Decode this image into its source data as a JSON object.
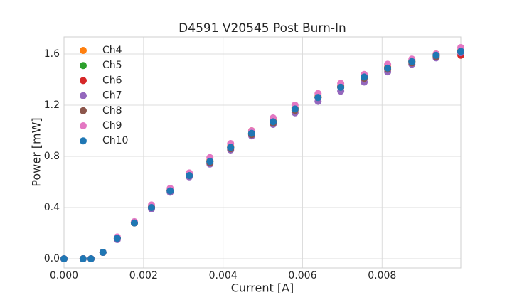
{
  "chart_data": {
    "type": "scatter",
    "title": "D4591 V20545 Post Burn-In",
    "x_label": "Current [A]",
    "y_label": "Power [mW]",
    "x": [
      0,
      0.00048,
      0.00068,
      0.00098,
      0.00134,
      0.00177,
      0.0022,
      0.00267,
      0.00315,
      0.00367,
      0.00419,
      0.00472,
      0.00526,
      0.00581,
      0.00639,
      0.00696,
      0.00755,
      0.00814,
      0.00875,
      0.00936,
      0.00998
    ],
    "series": [
      {
        "name": "Ch4",
        "color": "#ff7f0e",
        "values": [
          0,
          0,
          0,
          0.05,
          0.16,
          0.28,
          0.41,
          0.54,
          0.66,
          0.77,
          0.88,
          1.0,
          1.08,
          1.18,
          1.27,
          1.35,
          1.43,
          1.5,
          1.55,
          1.6,
          1.63
        ]
      },
      {
        "name": "Ch5",
        "color": "#2ca02c",
        "values": [
          0,
          0,
          0,
          0.05,
          0.16,
          0.28,
          0.4,
          0.53,
          0.65,
          0.76,
          0.87,
          0.98,
          1.07,
          1.17,
          1.26,
          1.34,
          1.42,
          1.49,
          1.54,
          1.59,
          1.62
        ]
      },
      {
        "name": "Ch6",
        "color": "#d62728",
        "values": [
          0,
          0,
          0,
          0.05,
          0.16,
          0.28,
          0.4,
          0.53,
          0.65,
          0.76,
          0.87,
          0.97,
          1.07,
          1.17,
          1.26,
          1.34,
          1.42,
          1.49,
          1.54,
          1.59,
          1.59
        ]
      },
      {
        "name": "Ch7",
        "color": "#9467bd",
        "values": [
          0,
          0,
          0,
          0.05,
          0.15,
          0.28,
          0.39,
          0.52,
          0.64,
          0.74,
          0.85,
          0.96,
          1.05,
          1.14,
          1.23,
          1.31,
          1.38,
          1.46,
          1.52,
          1.57,
          1.61
        ]
      },
      {
        "name": "Ch8",
        "color": "#8c564b",
        "values": [
          0,
          0,
          0,
          0.05,
          0.16,
          0.28,
          0.4,
          0.53,
          0.65,
          0.75,
          0.86,
          0.97,
          1.06,
          1.16,
          1.26,
          1.34,
          1.41,
          1.48,
          1.53,
          1.58,
          1.62
        ]
      },
      {
        "name": "Ch9",
        "color": "#e377c2",
        "values": [
          0,
          0,
          0,
          0.05,
          0.17,
          0.29,
          0.42,
          0.55,
          0.67,
          0.79,
          0.9,
          1.0,
          1.1,
          1.2,
          1.29,
          1.37,
          1.44,
          1.52,
          1.56,
          1.6,
          1.65
        ]
      },
      {
        "name": "Ch10",
        "color": "#1f77b4",
        "values": [
          0,
          0,
          0,
          0.05,
          0.16,
          0.28,
          0.4,
          0.53,
          0.65,
          0.76,
          0.87,
          0.98,
          1.07,
          1.17,
          1.26,
          1.34,
          1.42,
          1.49,
          1.54,
          1.59,
          1.62
        ]
      }
    ],
    "xlim": [
      0,
      0.00998
    ],
    "ylim": [
      -0.072,
      1.733
    ],
    "xticks": [
      {
        "value": 0,
        "label": "0.000"
      },
      {
        "value": 0.002,
        "label": "0.002"
      },
      {
        "value": 0.004,
        "label": "0.004"
      },
      {
        "value": 0.006,
        "label": "0.006"
      },
      {
        "value": 0.008,
        "label": "0.008"
      }
    ],
    "yticks": [
      {
        "value": 0,
        "label": "0.0"
      },
      {
        "value": 0.4,
        "label": "0.4"
      },
      {
        "value": 0.8,
        "label": "0.8"
      },
      {
        "value": 1.2,
        "label": "1.2"
      },
      {
        "value": 1.6,
        "label": "1.6"
      }
    ],
    "grid": true,
    "legend": "upper left"
  }
}
